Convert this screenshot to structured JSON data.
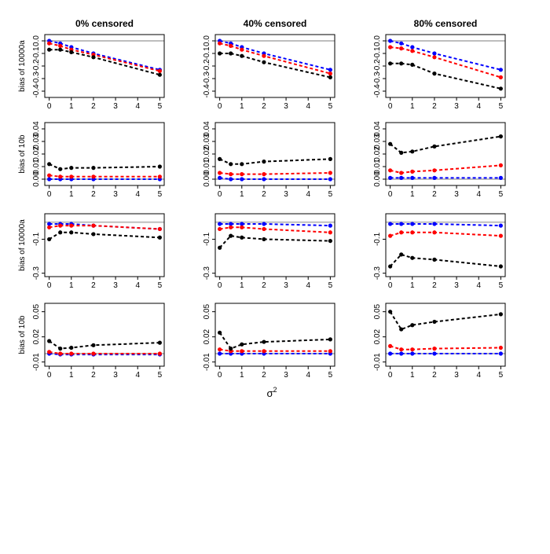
{
  "figure": {
    "column_titles": [
      "0% censored",
      "40% censored",
      "80% censored"
    ],
    "x_axis_label": "σ",
    "x_axis_label_superscript": "2",
    "colors": {
      "black": "#000000",
      "red": "#ff0000",
      "blue": "#0000ff",
      "reference_line": "#bebebe"
    }
  },
  "chart_data": [
    {
      "type": "line",
      "row": 0,
      "col": 0,
      "title": "0% censored",
      "ylabel": "bias of 10000a",
      "xlim": [
        0,
        5
      ],
      "ylim": [
        -0.45,
        0.05
      ],
      "xticks": [
        0,
        1,
        2,
        3,
        4,
        5
      ],
      "yticks": [
        -0.4,
        -0.3,
        -0.2,
        -0.1,
        0.0
      ],
      "ytick_labels": [
        "-0.4",
        "-0.3",
        "-0.2",
        "-0.1",
        "0.0"
      ],
      "ref": 0,
      "x": [
        0,
        0.5,
        1,
        2,
        5
      ],
      "series": [
        {
          "name": "black",
          "color": "black",
          "values": [
            -0.07,
            -0.07,
            -0.09,
            -0.13,
            -0.27
          ]
        },
        {
          "name": "red",
          "color": "red",
          "values": [
            -0.02,
            -0.04,
            -0.07,
            -0.11,
            -0.24
          ]
        },
        {
          "name": "blue",
          "color": "blue",
          "values": [
            0.0,
            -0.02,
            -0.05,
            -0.1,
            -0.23
          ]
        }
      ]
    },
    {
      "type": "line",
      "row": 0,
      "col": 1,
      "title": "40% censored",
      "ylabel": "",
      "xlim": [
        0,
        5
      ],
      "ylim": [
        -0.45,
        0.05
      ],
      "xticks": [
        0,
        1,
        2,
        3,
        4,
        5
      ],
      "yticks": [
        -0.4,
        -0.3,
        -0.2,
        -0.1,
        0.0
      ],
      "ytick_labels": [
        "-0.4",
        "-0.3",
        "-0.2",
        "-0.1",
        "0.0"
      ],
      "ref": 0,
      "x": [
        0,
        0.5,
        1,
        2,
        5
      ],
      "series": [
        {
          "name": "black",
          "color": "black",
          "values": [
            -0.1,
            -0.1,
            -0.12,
            -0.17,
            -0.29
          ]
        },
        {
          "name": "red",
          "color": "red",
          "values": [
            -0.02,
            -0.04,
            -0.07,
            -0.12,
            -0.26
          ]
        },
        {
          "name": "blue",
          "color": "blue",
          "values": [
            0.0,
            -0.02,
            -0.05,
            -0.1,
            -0.23
          ]
        }
      ]
    },
    {
      "type": "line",
      "row": 0,
      "col": 2,
      "title": "80% censored",
      "ylabel": "",
      "xlim": [
        0,
        5
      ],
      "ylim": [
        -0.45,
        0.05
      ],
      "xticks": [
        0,
        1,
        2,
        3,
        4,
        5
      ],
      "yticks": [
        -0.4,
        -0.3,
        -0.2,
        -0.1,
        0.0
      ],
      "ytick_labels": [
        "-0.4",
        "-0.3",
        "-0.2",
        "-0.1",
        "0.0"
      ],
      "ref": 0,
      "x": [
        0,
        0.5,
        1,
        2,
        5
      ],
      "series": [
        {
          "name": "black",
          "color": "black",
          "values": [
            -0.18,
            -0.18,
            -0.19,
            -0.26,
            -0.38
          ]
        },
        {
          "name": "red",
          "color": "red",
          "values": [
            -0.05,
            -0.06,
            -0.08,
            -0.13,
            -0.29
          ]
        },
        {
          "name": "blue",
          "color": "blue",
          "values": [
            0.0,
            -0.02,
            -0.05,
            -0.1,
            -0.23
          ]
        }
      ]
    },
    {
      "type": "line",
      "row": 1,
      "col": 0,
      "title": "",
      "ylabel": "bias of 10b",
      "xlim": [
        0,
        5
      ],
      "ylim": [
        -0.005,
        0.045
      ],
      "xticks": [
        0,
        1,
        2,
        3,
        4,
        5
      ],
      "yticks": [
        0,
        0.01,
        0.02,
        0.03,
        0.04
      ],
      "ytick_labels": [
        "0.00",
        "0.01",
        "0.02",
        "0.03",
        "0.04"
      ],
      "ref": 0,
      "x": [
        0,
        0.5,
        1,
        2,
        5
      ],
      "series": [
        {
          "name": "black",
          "color": "black",
          "values": [
            0.012,
            0.008,
            0.009,
            0.009,
            0.01
          ]
        },
        {
          "name": "red",
          "color": "red",
          "values": [
            0.003,
            0.002,
            0.002,
            0.002,
            0.002
          ]
        },
        {
          "name": "blue",
          "color": "blue",
          "values": [
            0.0,
            0.0,
            0.0,
            0.0,
            0.0
          ]
        }
      ]
    },
    {
      "type": "line",
      "row": 1,
      "col": 1,
      "title": "",
      "ylabel": "",
      "xlim": [
        0,
        5
      ],
      "ylim": [
        -0.005,
        0.045
      ],
      "xticks": [
        0,
        1,
        2,
        3,
        4,
        5
      ],
      "yticks": [
        0,
        0.01,
        0.02,
        0.03,
        0.04
      ],
      "ytick_labels": [
        "0.00",
        "0.01",
        "0.02",
        "0.03",
        "0.04"
      ],
      "ref": 0,
      "x": [
        0,
        0.5,
        1,
        2,
        5
      ],
      "series": [
        {
          "name": "black",
          "color": "black",
          "values": [
            0.016,
            0.012,
            0.012,
            0.014,
            0.016
          ]
        },
        {
          "name": "red",
          "color": "red",
          "values": [
            0.005,
            0.004,
            0.004,
            0.004,
            0.005
          ]
        },
        {
          "name": "blue",
          "color": "blue",
          "values": [
            0.001,
            0.0,
            0.0,
            0.0,
            0.0
          ]
        }
      ]
    },
    {
      "type": "line",
      "row": 1,
      "col": 2,
      "title": "",
      "ylabel": "",
      "xlim": [
        0,
        5
      ],
      "ylim": [
        -0.005,
        0.045
      ],
      "xticks": [
        0,
        1,
        2,
        3,
        4,
        5
      ],
      "yticks": [
        0,
        0.01,
        0.02,
        0.03,
        0.04
      ],
      "ytick_labels": [
        "0.00",
        "0.01",
        "0.02",
        "0.03",
        "0.04"
      ],
      "ref": 0,
      "x": [
        0,
        0.5,
        1,
        2,
        5
      ],
      "series": [
        {
          "name": "black",
          "color": "black",
          "values": [
            0.028,
            0.021,
            0.022,
            0.026,
            0.034
          ]
        },
        {
          "name": "red",
          "color": "red",
          "values": [
            0.007,
            0.005,
            0.006,
            0.007,
            0.011
          ]
        },
        {
          "name": "blue",
          "color": "blue",
          "values": [
            0.001,
            0.001,
            0.001,
            0.001,
            0.001
          ]
        }
      ]
    },
    {
      "type": "line",
      "row": 2,
      "col": 0,
      "title": "",
      "ylabel": "bias of 10000a",
      "xlim": [
        0,
        5
      ],
      "ylim": [
        -0.32,
        0.05
      ],
      "xticks": [
        0,
        1,
        2,
        3,
        4,
        5
      ],
      "yticks": [
        -0.3,
        -0.1
      ],
      "ytick_labels": [
        "-0.3",
        "-0.1"
      ],
      "ref": 0,
      "x": [
        0,
        0.5,
        1,
        2,
        5
      ],
      "series": [
        {
          "name": "black",
          "color": "black",
          "values": [
            -0.1,
            -0.06,
            -0.06,
            -0.07,
            -0.09
          ]
        },
        {
          "name": "red",
          "color": "red",
          "values": [
            -0.03,
            -0.02,
            -0.02,
            -0.02,
            -0.04
          ]
        },
        {
          "name": "blue",
          "color": "blue",
          "values": [
            -0.01,
            -0.01,
            -0.01,
            -0.02,
            -0.04
          ]
        }
      ]
    },
    {
      "type": "line",
      "row": 2,
      "col": 1,
      "title": "",
      "ylabel": "",
      "xlim": [
        0,
        5
      ],
      "ylim": [
        -0.32,
        0.05
      ],
      "xticks": [
        0,
        1,
        2,
        3,
        4,
        5
      ],
      "yticks": [
        -0.3,
        -0.1
      ],
      "ytick_labels": [
        "-0.3",
        "-0.1"
      ],
      "ref": 0,
      "x": [
        0,
        0.5,
        1,
        2,
        5
      ],
      "series": [
        {
          "name": "black",
          "color": "black",
          "values": [
            -0.15,
            -0.08,
            -0.09,
            -0.1,
            -0.11
          ]
        },
        {
          "name": "red",
          "color": "red",
          "values": [
            -0.04,
            -0.03,
            -0.03,
            -0.04,
            -0.06
          ]
        },
        {
          "name": "blue",
          "color": "blue",
          "values": [
            -0.01,
            -0.01,
            -0.01,
            -0.01,
            -0.02
          ]
        }
      ]
    },
    {
      "type": "line",
      "row": 2,
      "col": 2,
      "title": "",
      "ylabel": "",
      "xlim": [
        0,
        5
      ],
      "ylim": [
        -0.32,
        0.05
      ],
      "xticks": [
        0,
        1,
        2,
        3,
        4,
        5
      ],
      "yticks": [
        -0.3,
        -0.1
      ],
      "ytick_labels": [
        "-0.3",
        "-0.1"
      ],
      "ref": 0,
      "x": [
        0,
        0.5,
        1,
        2,
        5
      ],
      "series": [
        {
          "name": "black",
          "color": "black",
          "values": [
            -0.26,
            -0.19,
            -0.21,
            -0.22,
            -0.26
          ]
        },
        {
          "name": "red",
          "color": "red",
          "values": [
            -0.08,
            -0.06,
            -0.06,
            -0.06,
            -0.08
          ]
        },
        {
          "name": "blue",
          "color": "blue",
          "values": [
            -0.01,
            -0.01,
            -0.01,
            -0.01,
            -0.02
          ]
        }
      ]
    },
    {
      "type": "line",
      "row": 3,
      "col": 0,
      "title": "",
      "ylabel": "bias of 10b",
      "xlim": [
        0,
        5
      ],
      "ylim": [
        -0.015,
        0.06
      ],
      "xticks": [
        0,
        1,
        2,
        3,
        4,
        5
      ],
      "yticks": [
        -0.01,
        0.02,
        0.05
      ],
      "ytick_labels": [
        "-0.01",
        "0.02",
        "0.05"
      ],
      "ref": 0,
      "x": [
        0,
        0.5,
        1,
        2,
        5
      ],
      "series": [
        {
          "name": "black",
          "color": "black",
          "values": [
            0.015,
            0.006,
            0.007,
            0.01,
            0.013
          ]
        },
        {
          "name": "red",
          "color": "red",
          "values": [
            0.002,
            0.0,
            0.0,
            0.0,
            0.0
          ]
        },
        {
          "name": "blue",
          "color": "blue",
          "values": [
            0.0,
            -0.001,
            -0.001,
            -0.001,
            -0.001
          ]
        }
      ]
    },
    {
      "type": "line",
      "row": 3,
      "col": 1,
      "title": "",
      "ylabel": "",
      "xlim": [
        0,
        5
      ],
      "ylim": [
        -0.015,
        0.06
      ],
      "xticks": [
        0,
        1,
        2,
        3,
        4,
        5
      ],
      "yticks": [
        -0.01,
        0.02,
        0.05
      ],
      "ytick_labels": [
        "-0.01",
        "0.02",
        "0.05"
      ],
      "ref": 0,
      "x": [
        0,
        0.5,
        1,
        2,
        5
      ],
      "series": [
        {
          "name": "black",
          "color": "black",
          "values": [
            0.025,
            0.006,
            0.011,
            0.014,
            0.017
          ]
        },
        {
          "name": "red",
          "color": "red",
          "values": [
            0.005,
            0.003,
            0.003,
            0.003,
            0.003
          ]
        },
        {
          "name": "blue",
          "color": "blue",
          "values": [
            0.0,
            0.0,
            0.0,
            0.0,
            0.0
          ]
        }
      ]
    },
    {
      "type": "line",
      "row": 3,
      "col": 2,
      "title": "",
      "ylabel": "",
      "xlim": [
        0,
        5
      ],
      "ylim": [
        -0.015,
        0.06
      ],
      "xticks": [
        0,
        1,
        2,
        3,
        4,
        5
      ],
      "yticks": [
        -0.01,
        0.02,
        0.05
      ],
      "ytick_labels": [
        "-0.01",
        "0.02",
        "0.05"
      ],
      "ref": 0,
      "x": [
        0,
        0.5,
        1,
        2,
        5
      ],
      "series": [
        {
          "name": "black",
          "color": "black",
          "values": [
            0.05,
            0.029,
            0.034,
            0.038,
            0.047
          ]
        },
        {
          "name": "red",
          "color": "red",
          "values": [
            0.009,
            0.005,
            0.005,
            0.006,
            0.007
          ]
        },
        {
          "name": "blue",
          "color": "blue",
          "values": [
            0.0,
            0.0,
            0.0,
            0.0,
            0.0
          ]
        }
      ]
    }
  ]
}
